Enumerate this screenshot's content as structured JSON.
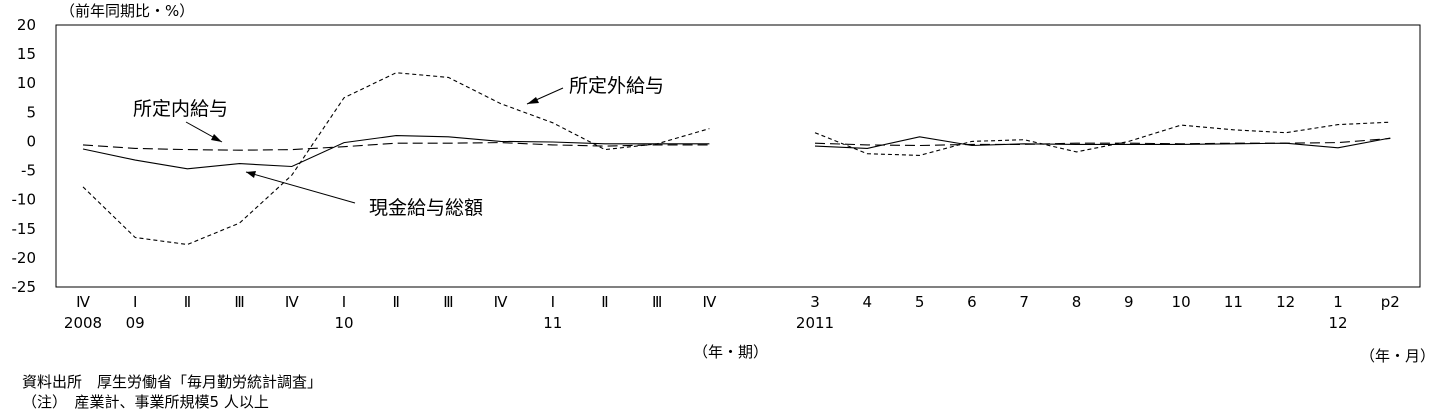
{
  "chart_data": {
    "type": "line",
    "unit_label": "（前年同期比・%）",
    "ylim": [
      -25,
      20
    ],
    "yticks": [
      20,
      15,
      10,
      5,
      0,
      -5,
      -10,
      -15,
      -20,
      -25
    ],
    "quarterly": {
      "x_labels": [
        "Ⅳ",
        "Ⅰ",
        "Ⅱ",
        "Ⅲ",
        "Ⅳ",
        "Ⅰ",
        "Ⅱ",
        "Ⅲ",
        "Ⅳ",
        "Ⅰ",
        "Ⅱ",
        "Ⅲ",
        "Ⅳ"
      ],
      "year_labels": [
        "2008",
        "09",
        "",
        "",
        "",
        "10",
        "",
        "",
        "",
        "11",
        "",
        "",
        ""
      ],
      "axis_unit": "（年・期）"
    },
    "monthly": {
      "x_labels": [
        "3",
        "4",
        "5",
        "6",
        "7",
        "8",
        "9",
        "10",
        "11",
        "12",
        "1",
        "p2"
      ],
      "year_labels": [
        "2011",
        "",
        "",
        "",
        "",
        "",
        "",
        "",
        "",
        "",
        "12",
        ""
      ],
      "axis_unit": "（年・月）"
    },
    "series": [
      {
        "name": "現金給与総額",
        "style": "solid",
        "quarterly": [
          -1.3,
          -3.2,
          -4.7,
          -3.8,
          -4.3,
          -0.2,
          1.0,
          0.8,
          0.0,
          -0.1,
          -0.4,
          -0.4,
          -0.4
        ],
        "monthly": [
          -0.8,
          -1.2,
          0.8,
          -0.7,
          -0.4,
          -0.5,
          -0.5,
          -0.5,
          -0.4,
          -0.3,
          -1.1,
          0.6
        ]
      },
      {
        "name": "所定内給与",
        "style": "long-dash",
        "quarterly": [
          -0.6,
          -1.2,
          -1.4,
          -1.5,
          -1.4,
          -0.9,
          -0.3,
          -0.3,
          -0.2,
          -0.6,
          -0.8,
          -0.6,
          -0.6
        ],
        "monthly": [
          -0.3,
          -0.6,
          -0.7,
          -0.5,
          -0.5,
          -0.3,
          -0.3,
          -0.4,
          -0.3,
          -0.3,
          -0.2,
          0.5
        ]
      },
      {
        "name": "所定外給与",
        "style": "short-dash",
        "quarterly": [
          -7.8,
          -16.5,
          -17.7,
          -14.0,
          -5.8,
          7.5,
          11.8,
          11.0,
          6.5,
          3.2,
          -1.4,
          -0.4,
          2.2
        ],
        "monthly": [
          1.5,
          -2.1,
          -2.4,
          0.0,
          0.3,
          -1.8,
          0.0,
          2.8,
          2.0,
          1.5,
          2.9,
          3.3
        ]
      }
    ],
    "annotations": [
      "所定外給与",
      "所定内給与",
      "現金給与総額"
    ]
  },
  "notes": {
    "source": "資料出所　厚生労働省「毎月勤労統計調査」",
    "note": "（注）　産業計、事業所規模5 人以上"
  }
}
